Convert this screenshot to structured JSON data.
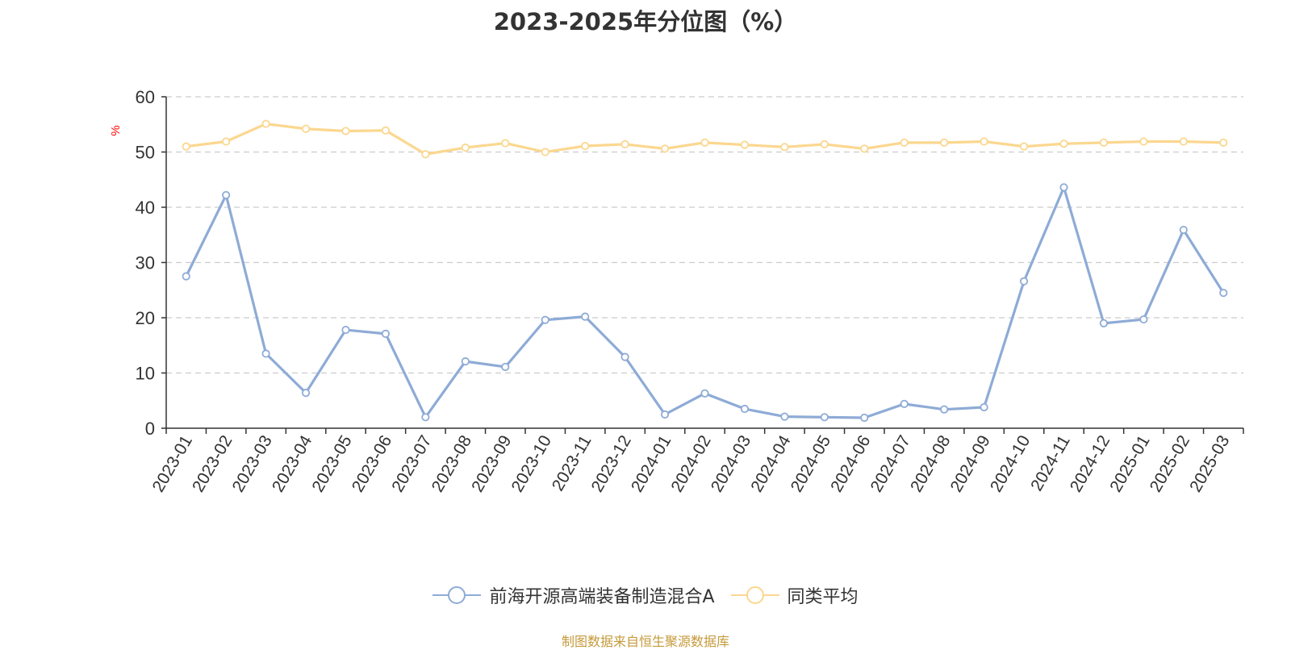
{
  "chart_data": {
    "type": "line",
    "title": "2023-2025年分位图（%）",
    "ylabel": "%",
    "xlabel": "",
    "ylim": [
      0,
      60
    ],
    "yticks": [
      0,
      10,
      20,
      30,
      40,
      50,
      60
    ],
    "grid": true,
    "legend_position": "bottom-center",
    "categories": [
      "2023-01",
      "2023-02",
      "2023-03",
      "2023-04",
      "2023-05",
      "2023-06",
      "2023-07",
      "2023-08",
      "2023-09",
      "2023-10",
      "2023-11",
      "2023-12",
      "2024-01",
      "2024-02",
      "2024-03",
      "2024-04",
      "2024-05",
      "2024-06",
      "2024-07",
      "2024-08",
      "2024-09",
      "2024-10",
      "2024-11",
      "2024-12",
      "2025-01",
      "2025-02",
      "2025-03"
    ],
    "series": [
      {
        "name": "前海开源高端装备制造混合A",
        "color": "#8eabd6",
        "values": [
          27.5,
          42.2,
          13.5,
          6.4,
          17.8,
          17.1,
          2.0,
          12.1,
          11.1,
          19.6,
          20.2,
          12.9,
          2.5,
          6.3,
          3.5,
          2.1,
          2.0,
          1.9,
          4.4,
          3.4,
          3.8,
          26.6,
          43.6,
          19.0,
          19.7,
          35.9,
          24.5
        ]
      },
      {
        "name": "同类平均",
        "color": "#fbd78f",
        "values": [
          51.0,
          51.9,
          55.1,
          54.2,
          53.8,
          53.9,
          49.6,
          50.8,
          51.6,
          50.0,
          51.1,
          51.4,
          50.6,
          51.7,
          51.3,
          50.9,
          51.4,
          50.6,
          51.7,
          51.7,
          51.9,
          51.0,
          51.5,
          51.7,
          51.9,
          51.9,
          51.7
        ]
      }
    ]
  },
  "footer": {
    "source": "制图数据来自恒生聚源数据库"
  }
}
